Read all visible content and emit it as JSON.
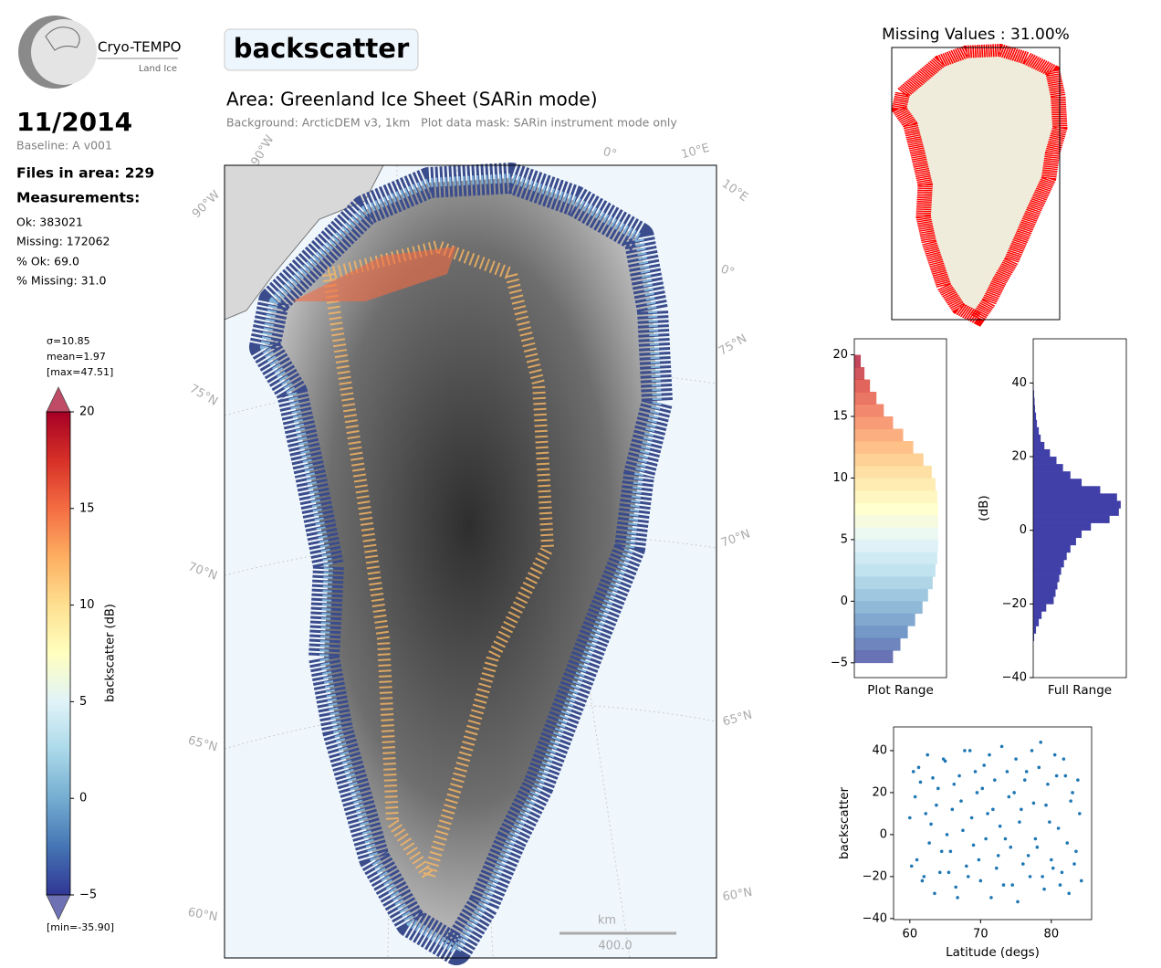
{
  "header": {
    "logo_text": "Cryo-TEMPO",
    "logo_subtext": "Land Ice",
    "variable": "backscatter",
    "date": "11/2014",
    "baseline": "Baseline: A v001",
    "area": "Area: Greenland Ice Sheet (SARin mode)",
    "background_note": "Background: ArcticDEM v3, 1km   Plot data mask: SARin instrument mode only"
  },
  "stats": {
    "files": "Files in area: 229",
    "measurements_title": "Measurements:",
    "ok": "Ok: 383021",
    "missing": "Missing: 172062",
    "pct_ok": "% Ok: 69.0",
    "pct_missing": "% Missing: 31.0"
  },
  "map": {
    "lon_labels": [
      "90°W",
      "0°",
      "10°E",
      "90°W",
      "10°E",
      "0°"
    ],
    "lat_labels": [
      "75°N",
      "75°N",
      "70°N",
      "70°N",
      "65°N",
      "65°N",
      "60°N",
      "60°N"
    ],
    "scale_unit": "km",
    "scale_value": "400.0",
    "missing_title": "Missing Values : 31.00%"
  },
  "colorbar": {
    "label": "backscatter (dB)",
    "sigma": "σ=10.85",
    "mean": "mean=1.97",
    "max": "[max=47.51]",
    "min": "[min=-35.90]",
    "lim": [
      -5,
      20
    ],
    "ticks": [
      {
        "value": -5,
        "label": "−5"
      },
      0,
      5,
      10,
      15,
      20
    ],
    "colormap": [
      "#313695",
      "#4575b4",
      "#74add1",
      "#abd9e9",
      "#e0f3f8",
      "#ffffbf",
      "#fee090",
      "#fdae61",
      "#f46d43",
      "#d73027",
      "#a50026"
    ]
  },
  "chart_data": [
    {
      "type": "histogram",
      "orientation": "horizontal",
      "xlabel": "Plot Range",
      "bins": [
        -5,
        -4,
        -3,
        -2,
        -1,
        0,
        1,
        2,
        3,
        4,
        5,
        6,
        7,
        8,
        9,
        10,
        11,
        12,
        13,
        14,
        15,
        16,
        17,
        18,
        19,
        20
      ],
      "counts": [
        42,
        50,
        58,
        66,
        74,
        80,
        85,
        88,
        90,
        91,
        91,
        91,
        91,
        90,
        88,
        84,
        75,
        64,
        53,
        42,
        32,
        24,
        17,
        11,
        7
      ],
      "xlim": [
        0,
        100
      ],
      "ylim": [
        -6.2,
        21.3
      ],
      "yticks": [
        {
          "value": -5,
          "label": "−5"
        },
        0,
        5,
        10,
        15,
        20
      ],
      "opacity": 0.75
    },
    {
      "type": "histogram",
      "orientation": "horizontal",
      "xlabel": "Full Range",
      "ylabel": "(dB)",
      "bins": [
        -30,
        -28,
        -26,
        -24,
        -22,
        -20,
        -18,
        -16,
        -14,
        -12,
        -10,
        -8,
        -6,
        -4,
        -2,
        0,
        2,
        4,
        6,
        8,
        10,
        12,
        14,
        16,
        18,
        20,
        22,
        24,
        26,
        28,
        30,
        32,
        34,
        36,
        38,
        40
      ],
      "counts": [
        1,
        3,
        6,
        9,
        14,
        22,
        24,
        26,
        28,
        30,
        33,
        36,
        40,
        46,
        52,
        62,
        82,
        92,
        94,
        90,
        72,
        52,
        40,
        32,
        25,
        18,
        12,
        8,
        6,
        4,
        3,
        2,
        1.5,
        1,
        0.5
      ],
      "xlim": [
        0,
        100
      ],
      "ylim": [
        -40,
        52
      ],
      "yticks": [
        {
          "value": -40,
          "label": "−40"
        },
        {
          "value": -20,
          "label": "−20"
        },
        0,
        20,
        40
      ],
      "color": "#4040a8"
    },
    {
      "type": "scatter",
      "xlabel": "Latitude (degs)",
      "ylabel": "backscatter",
      "color": "#1f77b4",
      "x": [
        60,
        60.5,
        61,
        61.5,
        62,
        62.5,
        63,
        63.5,
        64,
        64.5,
        65,
        65.5,
        66,
        66.5,
        67,
        67.5,
        68,
        68.5,
        69,
        69.5,
        70,
        70.5,
        71,
        71.5,
        72,
        72.5,
        73,
        73.5,
        74,
        74.5,
        75,
        75.5,
        76,
        76.5,
        77,
        77.5,
        78,
        78.5,
        79,
        79.5,
        80,
        80.5,
        81,
        81.5,
        82,
        82.5,
        83,
        83.5,
        84,
        60.25,
        60.75,
        61.25,
        61.75,
        62.25,
        62.75,
        63.25,
        63.75,
        64.25,
        64.75,
        65.25,
        65.75,
        66.25,
        66.75,
        67.25,
        67.75,
        68.25,
        68.75,
        69.25,
        69.75,
        70.25,
        70.75,
        71.25,
        71.75,
        72.25,
        72.75,
        73.25,
        73.75,
        74.25,
        74.75,
        75.25,
        75.75,
        76.25,
        76.75,
        77.25,
        77.75,
        78.25,
        78.75,
        79.25,
        79.75,
        80.25,
        80.75,
        81.25,
        81.75,
        82.25,
        82.75,
        83.25,
        83.75,
        84.25
      ],
      "y": [
        8,
        30,
        -12,
        25,
        -20,
        38,
        5,
        -28,
        22,
        -8,
        35,
        -18,
        12,
        -25,
        28,
        2,
        -15,
        40,
        -5,
        20,
        -22,
        33,
        10,
        -30,
        26,
        -10,
        42,
        -2,
        18,
        -24,
        36,
        6,
        -14,
        30,
        -20,
        15,
        -6,
        44,
        -26,
        24,
        -12,
        38,
        3,
        -18,
        28,
        -28,
        20,
        -8,
        10,
        -15,
        18,
        32,
        -22,
        10,
        -4,
        27,
        14,
        -18,
        36,
        0,
        -8,
        24,
        -30,
        16,
        40,
        -20,
        8,
        30,
        -12,
        22,
        -2,
        38,
        12,
        -16,
        4,
        -24,
        30,
        -6,
        20,
        -32,
        12,
        26,
        -10,
        40,
        -2,
        32,
        -20,
        14,
        6,
        -16,
        28,
        -24,
        36,
        -4,
        16,
        -14,
        26,
        -22
      ],
      "xlim": [
        57.7,
        85.7
      ],
      "ylim": [
        -40.5,
        51.3
      ],
      "xticks": [
        60,
        70,
        80
      ],
      "yticks": [
        {
          "value": -40,
          "label": "−40"
        },
        {
          "value": -20,
          "label": "−20"
        },
        0,
        20,
        40
      ]
    }
  ]
}
